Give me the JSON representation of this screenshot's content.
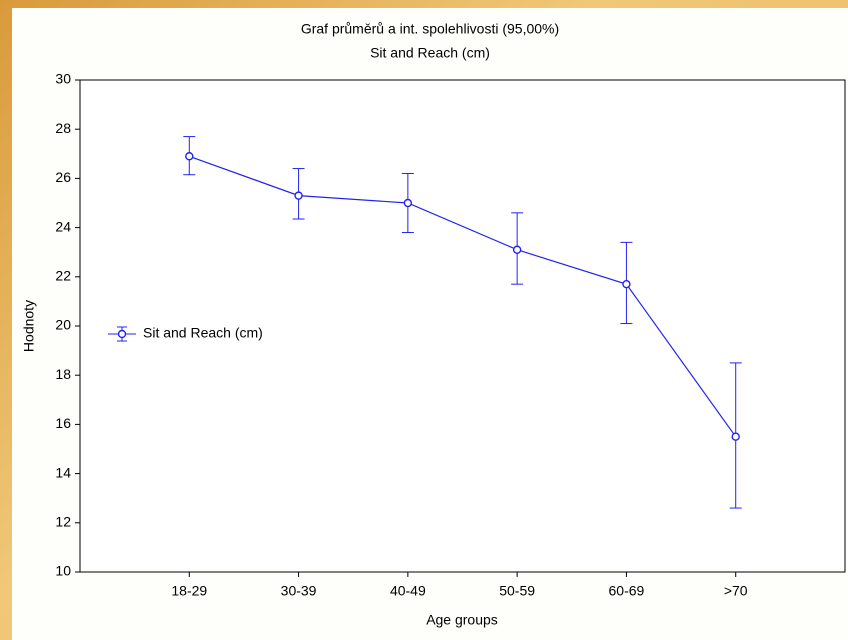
{
  "chart_data": {
    "type": "line",
    "title": "Graf průměrů a int. spolehlivosti (95,00%)",
    "subtitle": "Sit and Reach (cm)",
    "x_label": "Age groups",
    "y_label": "Hodnoty",
    "categories": [
      "18-29",
      "30-39",
      "40-49",
      "50-59",
      "60-69",
      ">70"
    ],
    "series": [
      {
        "name": "Sit and Reach (cm)",
        "color": "#2323f0",
        "values": [
          26.9,
          25.3,
          25.0,
          23.1,
          21.7,
          15.5
        ],
        "lower": [
          26.15,
          24.35,
          23.8,
          21.7,
          20.1,
          12.6
        ],
        "upper": [
          27.7,
          26.4,
          26.2,
          24.6,
          23.4,
          18.5
        ]
      }
    ],
    "ylim": [
      10,
      30
    ],
    "yticks": [
      10,
      12,
      14,
      16,
      18,
      20,
      22,
      24,
      26,
      28,
      30
    ],
    "legend": "left"
  }
}
